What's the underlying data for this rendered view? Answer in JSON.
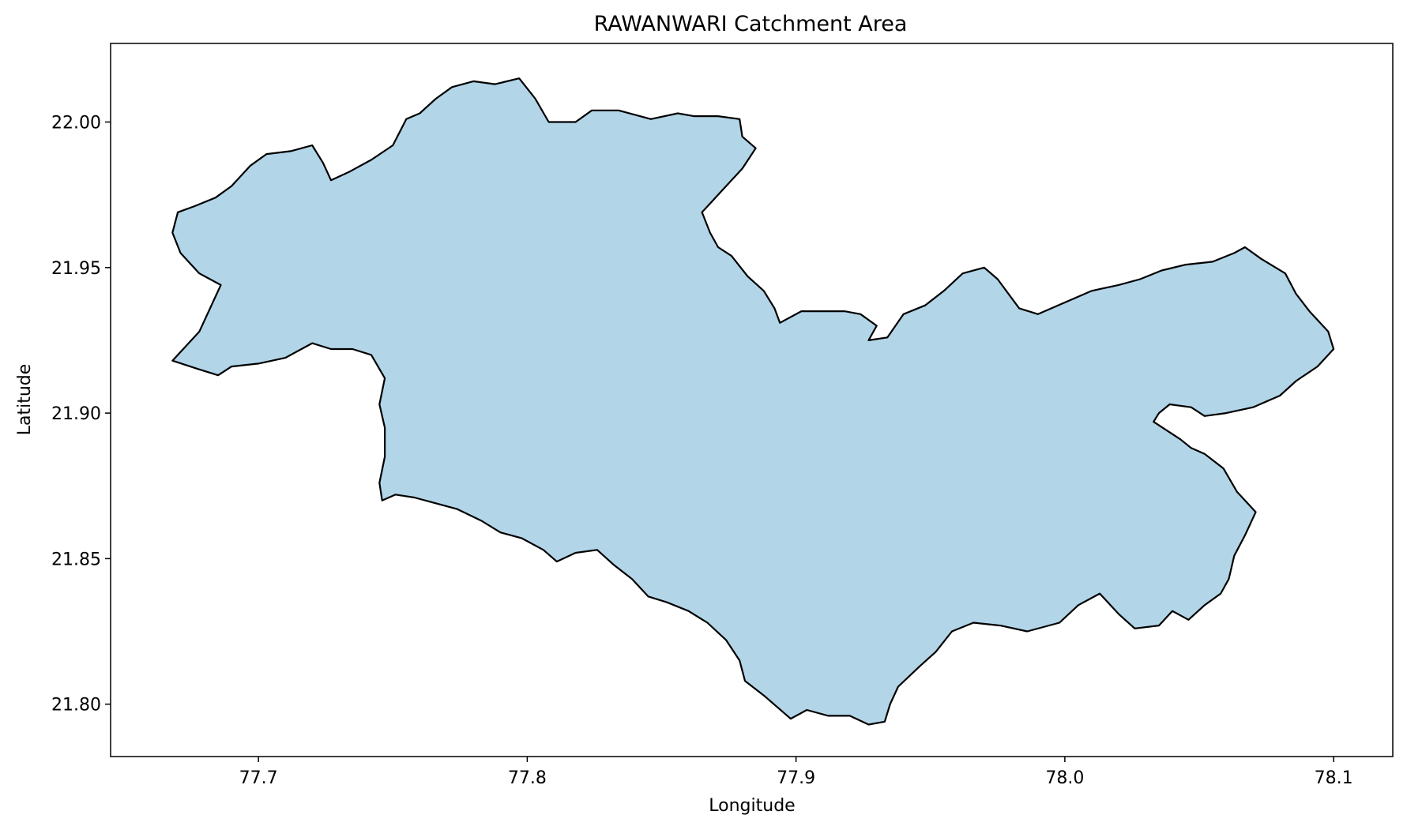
{
  "chart_data": {
    "type": "map",
    "title": "RAWANWARI Catchment Area",
    "xlabel": "Longitude",
    "ylabel": "Latitude",
    "xlim": [
      77.645,
      78.122
    ],
    "ylim": [
      21.782,
      22.027
    ],
    "xticks": [
      77.7,
      77.8,
      77.9,
      78.0,
      78.1
    ],
    "xtick_labels": [
      "77.7",
      "77.8",
      "77.9",
      "78.0",
      "78.1"
    ],
    "yticks": [
      21.8,
      21.85,
      21.9,
      21.95,
      22.0
    ],
    "ytick_labels": [
      "21.80",
      "21.85",
      "21.90",
      "21.95",
      "22.00"
    ],
    "grid": false,
    "legend": false,
    "polygon": {
      "name": "",
      "fill_color": "#b3d5e8",
      "edge_color": "#000000",
      "lonlat": [
        [
          77.668,
          21.918
        ],
        [
          77.672,
          21.922
        ],
        [
          77.678,
          21.928
        ],
        [
          77.682,
          21.936
        ],
        [
          77.686,
          21.944
        ],
        [
          77.678,
          21.948
        ],
        [
          77.671,
          21.955
        ],
        [
          77.668,
          21.962
        ],
        [
          77.67,
          21.969
        ],
        [
          77.676,
          21.971
        ],
        [
          77.684,
          21.974
        ],
        [
          77.69,
          21.978
        ],
        [
          77.697,
          21.985
        ],
        [
          77.703,
          21.989
        ],
        [
          77.712,
          21.99
        ],
        [
          77.72,
          21.992
        ],
        [
          77.724,
          21.986
        ],
        [
          77.727,
          21.98
        ],
        [
          77.734,
          21.983
        ],
        [
          77.742,
          21.987
        ],
        [
          77.75,
          21.992
        ],
        [
          77.755,
          22.001
        ],
        [
          77.76,
          22.003
        ],
        [
          77.766,
          22.008
        ],
        [
          77.772,
          22.012
        ],
        [
          77.78,
          22.014
        ],
        [
          77.788,
          22.013
        ],
        [
          77.797,
          22.015
        ],
        [
          77.803,
          22.008
        ],
        [
          77.808,
          22.0
        ],
        [
          77.818,
          22.0
        ],
        [
          77.824,
          22.004
        ],
        [
          77.834,
          22.004
        ],
        [
          77.846,
          22.001
        ],
        [
          77.856,
          22.003
        ],
        [
          77.862,
          22.002
        ],
        [
          77.871,
          22.002
        ],
        [
          77.879,
          22.001
        ],
        [
          77.88,
          21.995
        ],
        [
          77.885,
          21.991
        ],
        [
          77.88,
          21.984
        ],
        [
          77.873,
          21.977
        ],
        [
          77.865,
          21.969
        ],
        [
          77.868,
          21.962
        ],
        [
          77.871,
          21.957
        ],
        [
          77.876,
          21.954
        ],
        [
          77.882,
          21.947
        ],
        [
          77.888,
          21.942
        ],
        [
          77.892,
          21.936
        ],
        [
          77.894,
          21.931
        ],
        [
          77.902,
          21.935
        ],
        [
          77.91,
          21.935
        ],
        [
          77.918,
          21.935
        ],
        [
          77.924,
          21.934
        ],
        [
          77.93,
          21.93
        ],
        [
          77.927,
          21.925
        ],
        [
          77.934,
          21.926
        ],
        [
          77.94,
          21.934
        ],
        [
          77.948,
          21.937
        ],
        [
          77.955,
          21.942
        ],
        [
          77.962,
          21.948
        ],
        [
          77.97,
          21.95
        ],
        [
          77.975,
          21.946
        ],
        [
          77.983,
          21.936
        ],
        [
          77.99,
          21.934
        ],
        [
          78.0,
          21.938
        ],
        [
          78.01,
          21.942
        ],
        [
          78.02,
          21.944
        ],
        [
          78.028,
          21.946
        ],
        [
          78.036,
          21.949
        ],
        [
          78.045,
          21.951
        ],
        [
          78.055,
          21.952
        ],
        [
          78.063,
          21.955
        ],
        [
          78.067,
          21.957
        ],
        [
          78.073,
          21.953
        ],
        [
          78.082,
          21.948
        ],
        [
          78.086,
          21.941
        ],
        [
          78.091,
          21.935
        ],
        [
          78.098,
          21.928
        ],
        [
          78.1,
          21.922
        ],
        [
          78.094,
          21.916
        ],
        [
          78.086,
          21.911
        ],
        [
          78.08,
          21.906
        ],
        [
          78.07,
          21.902
        ],
        [
          78.06,
          21.9
        ],
        [
          78.052,
          21.899
        ],
        [
          78.047,
          21.902
        ],
        [
          78.039,
          21.903
        ],
        [
          78.035,
          21.9
        ],
        [
          78.033,
          21.897
        ],
        [
          78.038,
          21.894
        ],
        [
          78.043,
          21.891
        ],
        [
          78.047,
          21.888
        ],
        [
          78.052,
          21.886
        ],
        [
          78.059,
          21.881
        ],
        [
          78.064,
          21.873
        ],
        [
          78.071,
          21.866
        ],
        [
          78.067,
          21.858
        ],
        [
          78.063,
          21.851
        ],
        [
          78.061,
          21.843
        ],
        [
          78.058,
          21.838
        ],
        [
          78.052,
          21.834
        ],
        [
          78.046,
          21.829
        ],
        [
          78.04,
          21.832
        ],
        [
          78.035,
          21.827
        ],
        [
          78.026,
          21.826
        ],
        [
          78.02,
          21.831
        ],
        [
          78.013,
          21.838
        ],
        [
          78.005,
          21.834
        ],
        [
          77.998,
          21.828
        ],
        [
          77.986,
          21.825
        ],
        [
          77.976,
          21.827
        ],
        [
          77.966,
          21.828
        ],
        [
          77.958,
          21.825
        ],
        [
          77.952,
          21.818
        ],
        [
          77.946,
          21.813
        ],
        [
          77.938,
          21.806
        ],
        [
          77.935,
          21.8
        ],
        [
          77.933,
          21.794
        ],
        [
          77.927,
          21.793
        ],
        [
          77.92,
          21.796
        ],
        [
          77.912,
          21.796
        ],
        [
          77.904,
          21.798
        ],
        [
          77.898,
          21.795
        ],
        [
          77.893,
          21.799
        ],
        [
          77.888,
          21.803
        ],
        [
          77.881,
          21.808
        ],
        [
          77.879,
          21.815
        ],
        [
          77.874,
          21.822
        ],
        [
          77.867,
          21.828
        ],
        [
          77.86,
          21.832
        ],
        [
          77.852,
          21.835
        ],
        [
          77.845,
          21.837
        ],
        [
          77.839,
          21.843
        ],
        [
          77.832,
          21.848
        ],
        [
          77.826,
          21.853
        ],
        [
          77.818,
          21.852
        ],
        [
          77.811,
          21.849
        ],
        [
          77.806,
          21.853
        ],
        [
          77.798,
          21.857
        ],
        [
          77.79,
          21.859
        ],
        [
          77.783,
          21.863
        ],
        [
          77.774,
          21.867
        ],
        [
          77.766,
          21.869
        ],
        [
          77.758,
          21.871
        ],
        [
          77.751,
          21.872
        ],
        [
          77.746,
          21.87
        ],
        [
          77.745,
          21.876
        ],
        [
          77.747,
          21.885
        ],
        [
          77.747,
          21.895
        ],
        [
          77.745,
          21.903
        ],
        [
          77.747,
          21.912
        ],
        [
          77.742,
          21.92
        ],
        [
          77.735,
          21.922
        ],
        [
          77.727,
          21.922
        ],
        [
          77.72,
          21.924
        ],
        [
          77.716,
          21.922
        ],
        [
          77.71,
          21.919
        ],
        [
          77.7,
          21.917
        ],
        [
          77.69,
          21.916
        ],
        [
          77.685,
          21.913
        ],
        [
          77.678,
          21.915
        ],
        [
          77.668,
          21.918
        ]
      ]
    }
  }
}
